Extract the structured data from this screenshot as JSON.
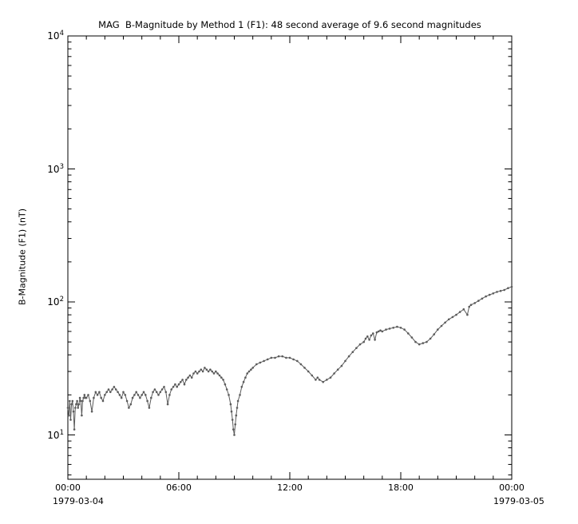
{
  "colors": {
    "background": "#ffffff",
    "axis": "#000000",
    "data": "#5b5b5b"
  },
  "chart_data": {
    "type": "line",
    "title": "MAG  B-Magnitude by Method 1 (F1): 48 second average of 9.6 second magnitudes",
    "ylabel": "B-Magnitude (F1) (nT)",
    "xlabel": "",
    "y_scale": "log",
    "y_base": "10",
    "y_major_exponents": [
      1,
      2,
      3,
      4
    ],
    "y_range": [
      4.64,
      10000
    ],
    "x_range_hours": [
      0,
      24
    ],
    "x_minor_every_hours": 1,
    "x_ticks": [
      {
        "hour": 0,
        "label": "00:00"
      },
      {
        "hour": 6,
        "label": "06:00"
      },
      {
        "hour": 12,
        "label": "12:00"
      },
      {
        "hour": 18,
        "label": "18:00"
      },
      {
        "hour": 24,
        "label": "00:00"
      }
    ],
    "date_left": "1979-03-04",
    "date_right": "1979-03-05",
    "legend": "none",
    "grid": false,
    "series": [
      {
        "name": "B-Magnitude (F1)",
        "color": "#5b5b5b",
        "marker": "dot",
        "points": [
          [
            0.0,
            16
          ],
          [
            0.05,
            14
          ],
          [
            0.1,
            18
          ],
          [
            0.15,
            13
          ],
          [
            0.2,
            17
          ],
          [
            0.25,
            18
          ],
          [
            0.3,
            15
          ],
          [
            0.35,
            11
          ],
          [
            0.4,
            16
          ],
          [
            0.45,
            17
          ],
          [
            0.5,
            18
          ],
          [
            0.55,
            16
          ],
          [
            0.6,
            17
          ],
          [
            0.65,
            19
          ],
          [
            0.7,
            18
          ],
          [
            0.75,
            14
          ],
          [
            0.8,
            18
          ],
          [
            0.85,
            19
          ],
          [
            0.9,
            20
          ],
          [
            0.95,
            19
          ],
          [
            1.0,
            19
          ],
          [
            1.1,
            20
          ],
          [
            1.2,
            18
          ],
          [
            1.3,
            15
          ],
          [
            1.4,
            19
          ],
          [
            1.5,
            21
          ],
          [
            1.6,
            20
          ],
          [
            1.7,
            21
          ],
          [
            1.8,
            19
          ],
          [
            1.9,
            18
          ],
          [
            2.0,
            20
          ],
          [
            2.1,
            21
          ],
          [
            2.2,
            22
          ],
          [
            2.3,
            21
          ],
          [
            2.4,
            22
          ],
          [
            2.5,
            23
          ],
          [
            2.6,
            22
          ],
          [
            2.7,
            21
          ],
          [
            2.8,
            20
          ],
          [
            2.9,
            19
          ],
          [
            3.0,
            21
          ],
          [
            3.1,
            20
          ],
          [
            3.2,
            18
          ],
          [
            3.3,
            16
          ],
          [
            3.4,
            17
          ],
          [
            3.5,
            19
          ],
          [
            3.6,
            20
          ],
          [
            3.7,
            21
          ],
          [
            3.8,
            20
          ],
          [
            3.9,
            19
          ],
          [
            4.0,
            20
          ],
          [
            4.1,
            21
          ],
          [
            4.2,
            20
          ],
          [
            4.3,
            18
          ],
          [
            4.4,
            16
          ],
          [
            4.5,
            19
          ],
          [
            4.6,
            21
          ],
          [
            4.7,
            22
          ],
          [
            4.8,
            21
          ],
          [
            4.9,
            20
          ],
          [
            5.0,
            21
          ],
          [
            5.1,
            22
          ],
          [
            5.2,
            23
          ],
          [
            5.3,
            21
          ],
          [
            5.4,
            17
          ],
          [
            5.5,
            20
          ],
          [
            5.6,
            22
          ],
          [
            5.7,
            23
          ],
          [
            5.8,
            24
          ],
          [
            5.9,
            23
          ],
          [
            6.0,
            24
          ],
          [
            6.1,
            25
          ],
          [
            6.2,
            26
          ],
          [
            6.3,
            24
          ],
          [
            6.4,
            26
          ],
          [
            6.5,
            27
          ],
          [
            6.6,
            28
          ],
          [
            6.7,
            27
          ],
          [
            6.8,
            29
          ],
          [
            6.9,
            30
          ],
          [
            7.0,
            29
          ],
          [
            7.1,
            30
          ],
          [
            7.2,
            31
          ],
          [
            7.3,
            30
          ],
          [
            7.4,
            32
          ],
          [
            7.5,
            31
          ],
          [
            7.6,
            30
          ],
          [
            7.7,
            31
          ],
          [
            7.8,
            30
          ],
          [
            7.9,
            29
          ],
          [
            8.0,
            30
          ],
          [
            8.1,
            29
          ],
          [
            8.2,
            28
          ],
          [
            8.3,
            27
          ],
          [
            8.4,
            26
          ],
          [
            8.5,
            24
          ],
          [
            8.6,
            22
          ],
          [
            8.7,
            20
          ],
          [
            8.8,
            17
          ],
          [
            8.85,
            15
          ],
          [
            8.9,
            13
          ],
          [
            8.95,
            11
          ],
          [
            9.0,
            10
          ],
          [
            9.05,
            12
          ],
          [
            9.1,
            14
          ],
          [
            9.15,
            16
          ],
          [
            9.2,
            18
          ],
          [
            9.3,
            20
          ],
          [
            9.4,
            23
          ],
          [
            9.5,
            25
          ],
          [
            9.6,
            27
          ],
          [
            9.7,
            29
          ],
          [
            9.8,
            30
          ],
          [
            9.9,
            31
          ],
          [
            10.0,
            32
          ],
          [
            10.2,
            34
          ],
          [
            10.4,
            35
          ],
          [
            10.6,
            36
          ],
          [
            10.8,
            37
          ],
          [
            11.0,
            38
          ],
          [
            11.2,
            38
          ],
          [
            11.4,
            39
          ],
          [
            11.6,
            39
          ],
          [
            11.8,
            38
          ],
          [
            12.0,
            38
          ],
          [
            12.2,
            37
          ],
          [
            12.4,
            36
          ],
          [
            12.6,
            34
          ],
          [
            12.8,
            32
          ],
          [
            13.0,
            30
          ],
          [
            13.2,
            28
          ],
          [
            13.4,
            26
          ],
          [
            13.5,
            27
          ],
          [
            13.6,
            26
          ],
          [
            13.8,
            25
          ],
          [
            14.0,
            26
          ],
          [
            14.2,
            27
          ],
          [
            14.4,
            29
          ],
          [
            14.6,
            31
          ],
          [
            14.8,
            33
          ],
          [
            15.0,
            36
          ],
          [
            15.2,
            39
          ],
          [
            15.4,
            42
          ],
          [
            15.6,
            45
          ],
          [
            15.8,
            48
          ],
          [
            16.0,
            50
          ],
          [
            16.1,
            53
          ],
          [
            16.2,
            55
          ],
          [
            16.3,
            52
          ],
          [
            16.4,
            56
          ],
          [
            16.5,
            58
          ],
          [
            16.6,
            52
          ],
          [
            16.7,
            59
          ],
          [
            16.8,
            60
          ],
          [
            16.9,
            61
          ],
          [
            17.0,
            60
          ],
          [
            17.2,
            62
          ],
          [
            17.4,
            63
          ],
          [
            17.6,
            64
          ],
          [
            17.8,
            65
          ],
          [
            18.0,
            64
          ],
          [
            18.2,
            62
          ],
          [
            18.4,
            58
          ],
          [
            18.6,
            54
          ],
          [
            18.8,
            50
          ],
          [
            19.0,
            48
          ],
          [
            19.2,
            49
          ],
          [
            19.4,
            50
          ],
          [
            19.6,
            53
          ],
          [
            19.8,
            57
          ],
          [
            20.0,
            62
          ],
          [
            20.2,
            66
          ],
          [
            20.4,
            70
          ],
          [
            20.6,
            74
          ],
          [
            20.8,
            77
          ],
          [
            21.0,
            80
          ],
          [
            21.2,
            84
          ],
          [
            21.4,
            88
          ],
          [
            21.6,
            80
          ],
          [
            21.7,
            92
          ],
          [
            21.8,
            95
          ],
          [
            22.0,
            98
          ],
          [
            22.2,
            102
          ],
          [
            22.4,
            106
          ],
          [
            22.6,
            110
          ],
          [
            22.8,
            113
          ],
          [
            23.0,
            116
          ],
          [
            23.2,
            119
          ],
          [
            23.4,
            121
          ],
          [
            23.6,
            123
          ],
          [
            23.8,
            127
          ],
          [
            24.0,
            130
          ]
        ]
      }
    ]
  }
}
